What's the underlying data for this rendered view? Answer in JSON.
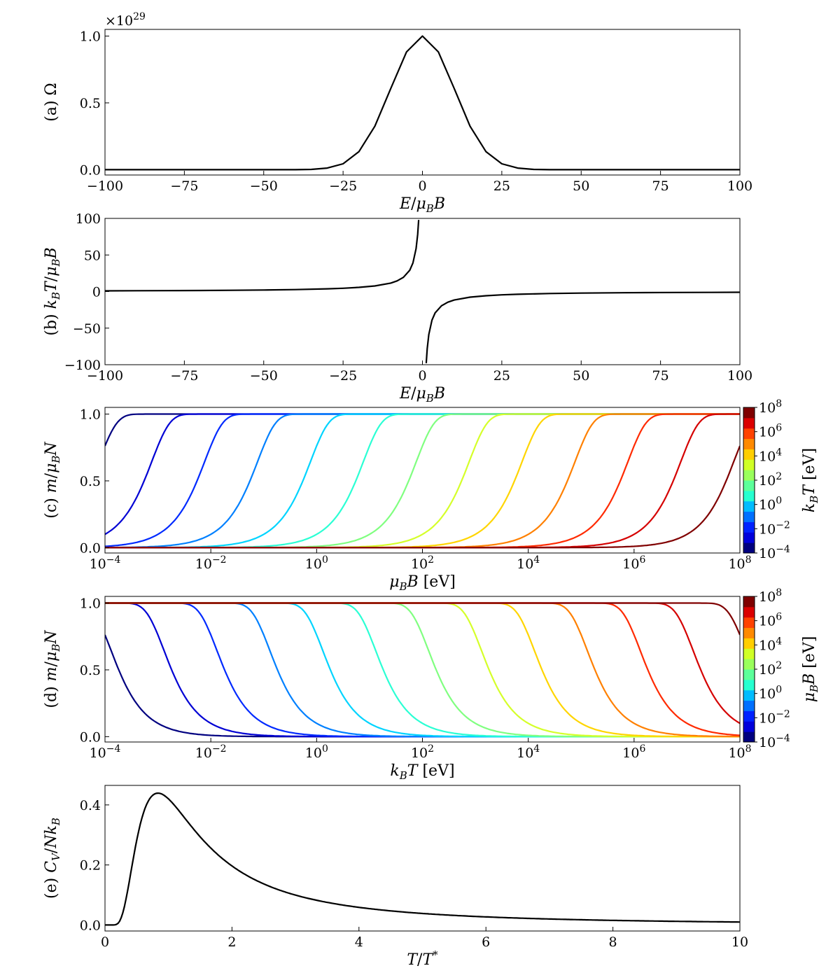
{
  "chart_data": [
    {
      "panel": "a",
      "type": "line",
      "ylabel": "(a) Ω",
      "xlabel": "E/μBB",
      "xlim": [
        -100,
        100
      ],
      "ylim": [
        -0.04,
        1.05
      ],
      "y_multiplier": "×10^29",
      "xticks": [
        -100,
        -75,
        -50,
        -25,
        0,
        25,
        50,
        75,
        100
      ],
      "yticks": [
        0.0,
        0.5,
        1.0
      ],
      "ytick_labels": [
        "0.0",
        "0.5",
        "1.0"
      ],
      "series": [
        {
          "color": "#000000",
          "x": [
            -100,
            -50,
            -40,
            -35,
            -30,
            -25,
            -20,
            -15,
            -10,
            -5,
            0,
            5,
            10,
            15,
            20,
            25,
            30,
            35,
            40,
            50,
            100
          ],
          "y": [
            0.0,
            0.0,
            0.0,
            0.002,
            0.012,
            0.044,
            0.135,
            0.325,
            0.607,
            0.882,
            1.0,
            0.882,
            0.607,
            0.325,
            0.135,
            0.044,
            0.012,
            0.002,
            0.0,
            0.0,
            0.0
          ]
        }
      ]
    },
    {
      "panel": "b",
      "type": "line",
      "ylabel": "(b) kBT/μBB",
      "xlabel": "E/μBB",
      "xlim": [
        -100,
        100
      ],
      "ylim": [
        -100,
        100
      ],
      "xticks": [
        -100,
        -75,
        -50,
        -25,
        0,
        25,
        50,
        75,
        100
      ],
      "yticks": [
        -100,
        -50,
        0,
        50,
        100
      ],
      "series": [
        {
          "color": "#000000",
          "x": [
            -100,
            -90,
            -80,
            -70,
            -60,
            -50,
            -40,
            -30,
            -25,
            -20,
            -15,
            -10,
            -8,
            -6,
            -4,
            -3,
            -2,
            -1.5,
            -1.2
          ],
          "y": [
            1.0,
            1.12,
            1.27,
            1.47,
            1.74,
            2.11,
            2.7,
            3.7,
            4.5,
            5.7,
            7.7,
            11.6,
            14.5,
            19.4,
            29.2,
            39.0,
            58.7,
            78.3,
            97.9
          ]
        },
        {
          "color": "#000000",
          "x": [
            1.2,
            1.5,
            2,
            3,
            4,
            6,
            8,
            10,
            15,
            20,
            25,
            30,
            40,
            50,
            60,
            70,
            80,
            90,
            100
          ],
          "y": [
            -97.9,
            -78.3,
            -58.7,
            -39.0,
            -29.2,
            -19.4,
            -14.5,
            -11.6,
            -7.7,
            -5.7,
            -4.5,
            -3.7,
            -2.7,
            -2.11,
            -1.74,
            -1.47,
            -1.27,
            -1.12,
            -1.0
          ]
        }
      ]
    },
    {
      "panel": "c",
      "type": "line",
      "ylabel": "(c) m/μBN",
      "xlabel": "μBB [eV]",
      "xscale": "log",
      "xlim": [
        -4,
        8
      ],
      "ylim": [
        -0.04,
        1.05
      ],
      "xticks_exp": [
        -4,
        -2,
        0,
        2,
        4,
        6,
        8
      ],
      "yticks": [
        0.0,
        0.5,
        1.0
      ],
      "ytick_labels": [
        "0.0",
        "0.5",
        "1.0"
      ],
      "family": "tanh",
      "param_exponents": [
        -4,
        -3,
        -2,
        -1,
        0,
        1,
        2,
        3,
        4,
        5,
        6,
        7,
        8
      ],
      "colors": [
        "#00007f",
        "#0000f1",
        "#004cff",
        "#00b0ff",
        "#29ffce",
        "#7dff7a",
        "#ceff29",
        "#ffc400",
        "#ff6800",
        "#f10800",
        "#7f0000",
        "#0a1aa0",
        "#88ff70"
      ],
      "colorbar": {
        "label": "kBT [eV]",
        "range_exp": [
          -4,
          8
        ],
        "tick_exp": [
          -4,
          -2,
          0,
          2,
          4,
          6,
          8
        ]
      }
    },
    {
      "panel": "d",
      "type": "line",
      "ylabel": "(d) m/μBN",
      "xlabel": "kBT [eV]",
      "xscale": "log",
      "xlim": [
        -4,
        8
      ],
      "ylim": [
        -0.04,
        1.05
      ],
      "xticks_exp": [
        -4,
        -2,
        0,
        2,
        4,
        6,
        8
      ],
      "yticks": [
        0.0,
        0.5,
        1.0
      ],
      "ytick_labels": [
        "0.0",
        "0.5",
        "1.0"
      ],
      "family": "tanh_inverse",
      "param_exponents": [
        -4,
        -3,
        -2,
        -1,
        0,
        1,
        2,
        3,
        4,
        5,
        6,
        7,
        8
      ],
      "colorbar": {
        "label": "μBB [eV]",
        "range_exp": [
          -4,
          8
        ],
        "tick_exp": [
          -4,
          -2,
          0,
          2,
          4,
          6,
          8
        ]
      }
    },
    {
      "panel": "e",
      "type": "line",
      "ylabel": "(e) CV/NkB",
      "xlabel": "T/T*",
      "xlim": [
        0,
        10
      ],
      "ylim": [
        -0.02,
        0.465
      ],
      "xticks": [
        0,
        2,
        4,
        6,
        8,
        10
      ],
      "yticks": [
        0.0,
        0.2,
        0.4
      ],
      "ytick_labels": [
        "0.0",
        "0.2",
        "0.4"
      ],
      "series": [
        {
          "color": "#000000",
          "formula": "schottky"
        }
      ]
    }
  ],
  "colormap": [
    "#00007f",
    "#0000db",
    "#0022ff",
    "#0070ff",
    "#00bcff",
    "#26ffd0",
    "#5cff9a",
    "#9aff5c",
    "#d0ff26",
    "#ffce00",
    "#ff8a00",
    "#ff4200",
    "#db0000",
    "#7f0000"
  ]
}
